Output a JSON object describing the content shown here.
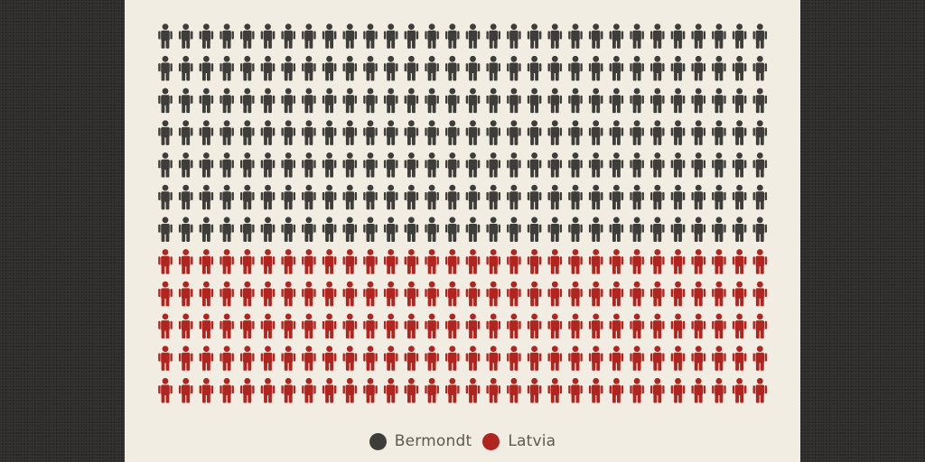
{
  "chart_data": {
    "type": "pictogram",
    "columns": 30,
    "rows": 12,
    "series": [
      {
        "name": "Bermondt",
        "count": 210,
        "color": "#3f3d39"
      },
      {
        "name": "Latvia",
        "count": 150,
        "color": "#b0251f"
      }
    ],
    "legend_position": "bottom-center",
    "icon": "person-icon"
  }
}
